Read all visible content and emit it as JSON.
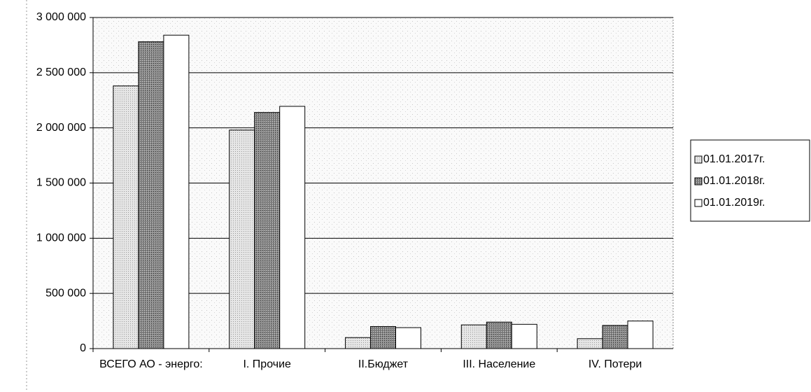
{
  "chart_data": {
    "type": "bar",
    "categories": [
      "ВСЕГО АО - энерго:",
      "I. Прочие",
      "II.Бюджет",
      "III. Население",
      "IV. Потери"
    ],
    "series": [
      {
        "name": "01.01.2017г.",
        "color": "#d9d9d9",
        "values": [
          2380000,
          1980000,
          100000,
          215000,
          90000
        ]
      },
      {
        "name": "01.01.2018г.",
        "color": "#7f7f7f",
        "values": [
          2780000,
          2140000,
          200000,
          240000,
          210000
        ]
      },
      {
        "name": "01.01.2019г.",
        "color": "#ffffff",
        "values": [
          2840000,
          2195000,
          190000,
          220000,
          250000
        ]
      }
    ],
    "ylim": [
      0,
      3000000
    ],
    "yticks": [
      0,
      {
        "value": 500000,
        "label": "500 000"
      },
      {
        "value": 1000000,
        "label": "1 000 000"
      },
      {
        "value": 1500000,
        "label": "1 500 000"
      },
      {
        "value": 2000000,
        "label": "2 000 000"
      },
      {
        "value": 2500000,
        "label": "2 500 000"
      },
      {
        "value": 3000000,
        "label": "3 000 000"
      }
    ],
    "grid": true,
    "legend": "right"
  }
}
